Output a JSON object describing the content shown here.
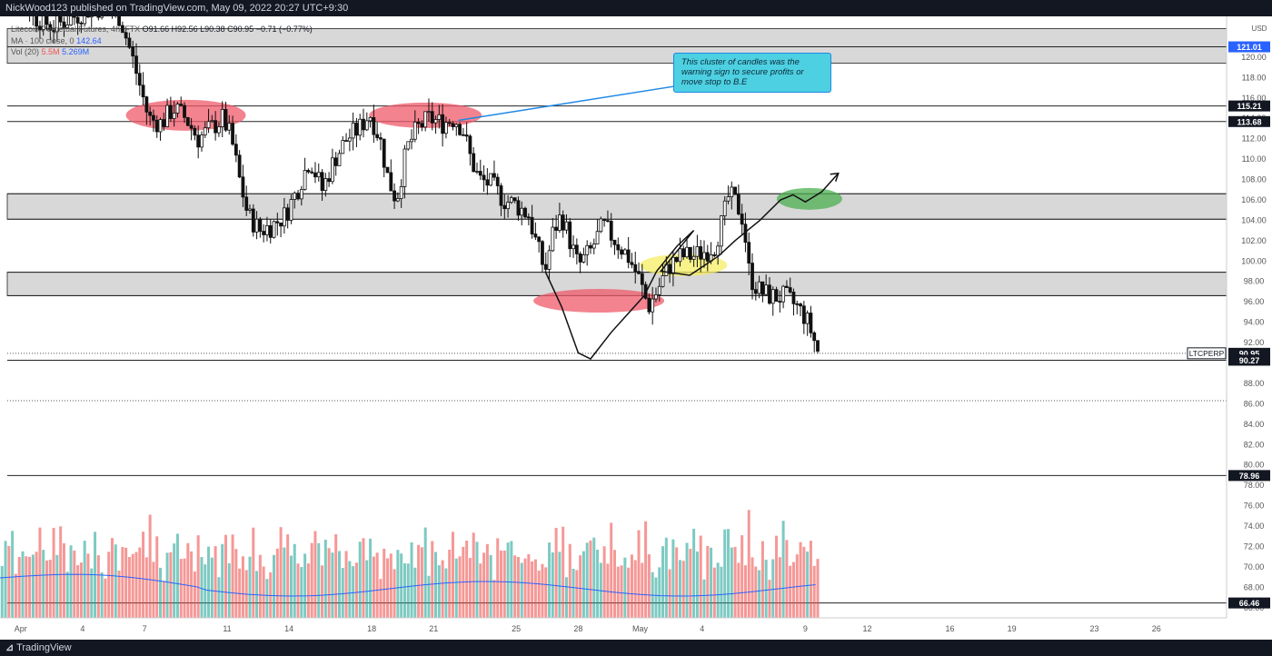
{
  "header": {
    "publisher_text": "NickWood123 published on TradingView.com, May 09, 2022 20:27 UTC+9:30"
  },
  "legend": {
    "symbol": "Litecoin Perpetual Futures, 4h, FTX",
    "ohlc": "O91.66  H92.56  L90.38  C90.95  −0.71 (−0.77%)",
    "ma_label": "MA · 100 close, 0",
    "ma_value": "142.64",
    "vol_label": "Vol (20)",
    "vol_value1": "5.5M",
    "vol_value2": "5.269M"
  },
  "annotation": {
    "text": "This cluster of candles was the warning sign to secure profits or move stop to B.E"
  },
  "footer": {
    "brand": "TradingView"
  },
  "colors": {
    "up": "#26a69a",
    "down": "#ef5350",
    "ma": "#2962ff",
    "band": "#d8d8d8",
    "pink_marker": "#ef5a6a",
    "yellow_marker": "#f5ee63",
    "green_marker": "#4caf50"
  },
  "chart_data": {
    "type": "candlestick",
    "title": "Litecoin Perpetual Futures, 4h, FTX",
    "currency": "USD",
    "y_ticks": [
      66,
      68,
      70,
      72,
      74,
      76,
      78,
      80,
      82,
      84,
      86,
      88,
      90,
      92,
      94,
      96,
      98,
      100,
      102,
      104,
      106,
      108,
      110,
      112,
      114,
      116,
      118,
      120
    ],
    "ylim": [
      65,
      124
    ],
    "x_ticks": [
      {
        "label": "Apr",
        "day": 1
      },
      {
        "label": "4",
        "day": 4
      },
      {
        "label": "7",
        "day": 7
      },
      {
        "label": "11",
        "day": 11
      },
      {
        "label": "14",
        "day": 14
      },
      {
        "label": "18",
        "day": 18
      },
      {
        "label": "21",
        "day": 21
      },
      {
        "label": "25",
        "day": 25
      },
      {
        "label": "28",
        "day": 28
      },
      {
        "label": "May",
        "day": 31
      },
      {
        "label": "4",
        "day": 34
      },
      {
        "label": "9",
        "day": 39
      },
      {
        "label": "12",
        "day": 42
      },
      {
        "label": "16",
        "day": 46
      },
      {
        "label": "19",
        "day": 49
      },
      {
        "label": "23",
        "day": 53
      },
      {
        "label": "26",
        "day": 56
      }
    ],
    "xlim_days": [
      0,
      59.4
    ],
    "horizontal_levels": [
      121.01,
      115.21,
      113.68,
      106.6,
      104.1,
      98.9,
      96.6,
      90.27,
      78.96,
      66.46
    ],
    "zones": [
      {
        "from": 119.4,
        "to": 122.8
      },
      {
        "from": 104.1,
        "to": 106.6
      },
      {
        "from": 96.6,
        "to": 98.9
      }
    ],
    "price_labels": [
      {
        "value": 121.01,
        "text": "121.01",
        "style": "blue"
      },
      {
        "value": 115.21,
        "text": "115.21",
        "style": "dark"
      },
      {
        "value": 113.68,
        "text": "113.68",
        "style": "dark"
      },
      {
        "value": 90.95,
        "text": "90.95",
        "style": "dark"
      },
      {
        "value": 90.27,
        "text": "90.27",
        "style": "dark"
      },
      {
        "value": 78.96,
        "text": "78.96",
        "style": "dark"
      },
      {
        "value": 66.46,
        "text": "66.46",
        "style": "dark"
      }
    ],
    "last_price_tag": "LTCPERP",
    "last_price": 90.95,
    "dotted_level": 86.3,
    "currency_label": "USD",
    "price_path": [
      [
        -0.4,
        126
      ],
      [
        0.6,
        128
      ],
      [
        1.6,
        124
      ],
      [
        2.6,
        123
      ],
      [
        3.6,
        124
      ],
      [
        4.6,
        125
      ],
      [
        5.8,
        124
      ],
      [
        6.4,
        120
      ],
      [
        6.8,
        117
      ],
      [
        7.2,
        114
      ],
      [
        7.8,
        113.5
      ],
      [
        8.4,
        115
      ],
      [
        9.0,
        114
      ],
      [
        9.6,
        112
      ],
      [
        10.2,
        113
      ],
      [
        10.8,
        114
      ],
      [
        11.2,
        112
      ],
      [
        11.6,
        108
      ],
      [
        12.0,
        104.5
      ],
      [
        12.6,
        103
      ],
      [
        13.2,
        103.5
      ],
      [
        13.8,
        104.5
      ],
      [
        14.4,
        107
      ],
      [
        15.0,
        110
      ],
      [
        15.6,
        107
      ],
      [
        16.2,
        110
      ],
      [
        16.8,
        112
      ],
      [
        17.4,
        113
      ],
      [
        17.9,
        114.5
      ],
      [
        18.4,
        112
      ],
      [
        18.8,
        108
      ],
      [
        19.2,
        106
      ],
      [
        19.7,
        111
      ],
      [
        20.2,
        113
      ],
      [
        20.8,
        114
      ],
      [
        21.4,
        113.5
      ],
      [
        22.0,
        114
      ],
      [
        22.4,
        113
      ],
      [
        22.8,
        110
      ],
      [
        23.2,
        108
      ],
      [
        23.8,
        107.5
      ],
      [
        24.4,
        106
      ],
      [
        25.0,
        105.5
      ],
      [
        25.6,
        104.5
      ],
      [
        26.0,
        101.5
      ],
      [
        26.4,
        99
      ],
      [
        26.8,
        103
      ],
      [
        27.2,
        104.5
      ],
      [
        27.6,
        102
      ],
      [
        28.0,
        99.5
      ],
      [
        28.6,
        101
      ],
      [
        29.2,
        103.5
      ],
      [
        29.8,
        102
      ],
      [
        30.4,
        100.5
      ],
      [
        30.9,
        98.5
      ],
      [
        31.4,
        95.5
      ],
      [
        31.8,
        97
      ],
      [
        32.4,
        99.5
      ],
      [
        33.0,
        100.5
      ],
      [
        33.6,
        100.5
      ],
      [
        34.2,
        101
      ],
      [
        34.6,
        101.5
      ],
      [
        35.0,
        104
      ],
      [
        35.3,
        106.5
      ],
      [
        35.7,
        105.5
      ],
      [
        36.0,
        104
      ],
      [
        36.3,
        98.5
      ],
      [
        36.8,
        97
      ],
      [
        37.4,
        96.5
      ],
      [
        38.0,
        96.5
      ],
      [
        38.6,
        95.5
      ],
      [
        39.0,
        94.5
      ],
      [
        39.3,
        93
      ],
      [
        39.6,
        91.2
      ]
    ],
    "volume_scale_max": 10,
    "volume_levels": [
      4,
      5,
      6,
      5,
      7,
      5,
      9,
      4,
      6,
      5,
      4,
      6,
      5,
      7,
      8,
      6,
      5,
      6,
      7,
      5,
      9,
      6,
      4,
      5,
      6,
      5,
      4,
      6,
      7,
      5,
      8,
      6,
      5,
      4,
      5,
      6,
      7,
      5,
      6,
      5
    ]
  }
}
